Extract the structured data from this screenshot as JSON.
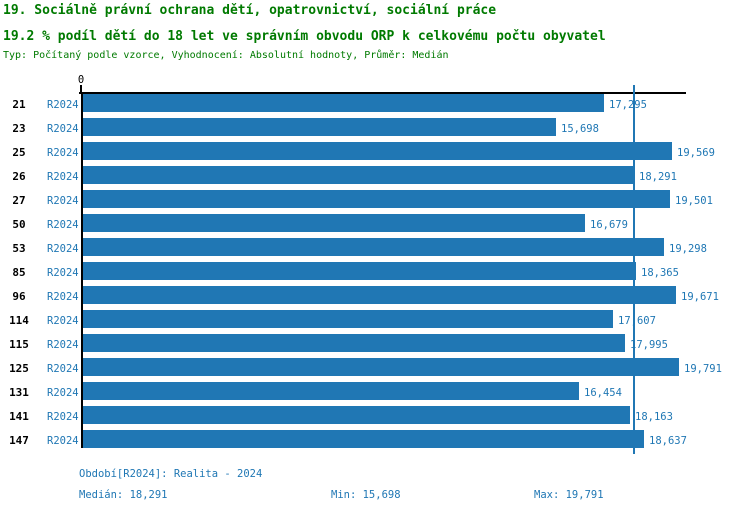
{
  "title": "19. Sociálně právní ochrana dětí, opatrovnictví, sociální práce",
  "subtitle": "19.2 % podíl dětí do 18 let ve správním obvodu ORP k celkovému počtu obyvatel",
  "meta": "Typ: Počítaný podle vzorce, Vyhodnocení: Absolutní hodnoty, Průměr: Medián",
  "colors": {
    "bar": "#2077b4",
    "blue_text": "#1f77b4",
    "green_text": "#007a00",
    "axis": "#000000"
  },
  "axis": {
    "zero_label": "0"
  },
  "chart_data": {
    "type": "bar",
    "orientation": "horizontal",
    "title": "19. Sociálně právní ochrana dětí, opatrovnictví, sociální práce",
    "subtitle": "19.2 % podíl dětí do 18 let ve správním obvodu ORP k celkovému počtu obyvatel",
    "categories": [
      "21",
      "23",
      "25",
      "26",
      "27",
      "50",
      "53",
      "85",
      "96",
      "114",
      "115",
      "125",
      "131",
      "141",
      "147"
    ],
    "series": [
      {
        "name": "R2024",
        "values": [
          17295,
          15698,
          19569,
          18291,
          19501,
          16679,
          19298,
          18365,
          19671,
          17607,
          17995,
          19791,
          16454,
          18163,
          18637
        ]
      }
    ],
    "value_labels": [
      "17,295",
      "15,698",
      "19,569",
      "18,291",
      "19,501",
      "16,679",
      "19,298",
      "18,365",
      "19,671",
      "17,607",
      "17,995",
      "19,791",
      "16,454",
      "18,163",
      "18,637"
    ],
    "xlim": [
      0,
      20000
    ],
    "grid": false,
    "legend": false,
    "median": 18291,
    "min": 15698,
    "max": 19791
  },
  "footer": {
    "period": "Období[R2024]: Realita - 2024",
    "median": "Medián: 18,291",
    "min": "Min: 15,698",
    "max": "Max: 19,791"
  }
}
